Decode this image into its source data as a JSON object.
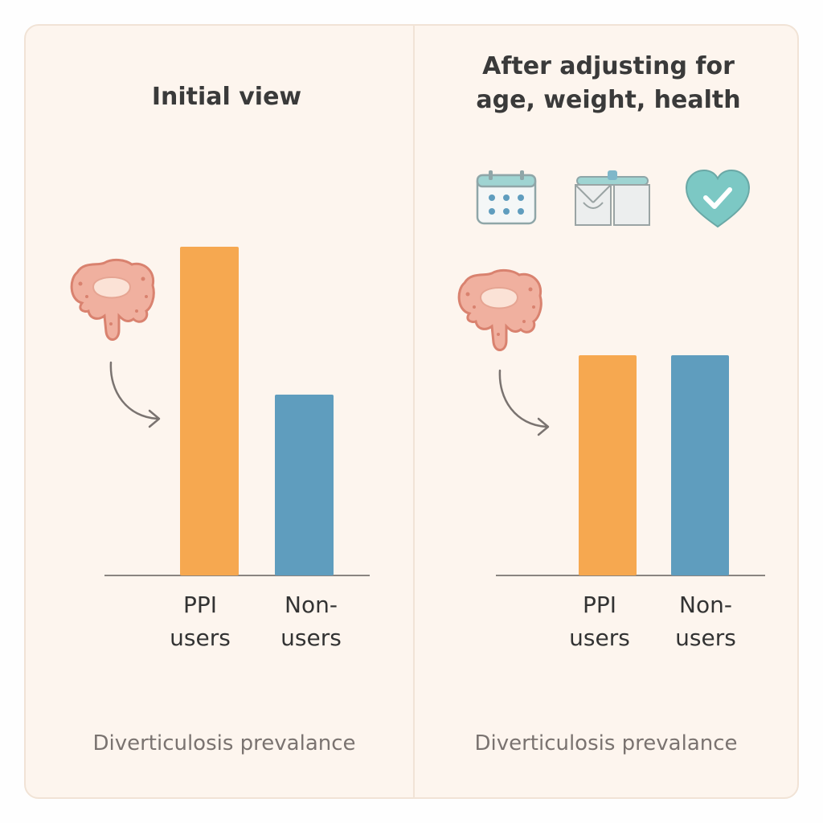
{
  "chart_data": [
    {
      "type": "bar",
      "title": "Initial view",
      "categories": [
        "PPI users",
        "Non-users"
      ],
      "category_lines": [
        [
          "PPI",
          "users"
        ],
        [
          "Non-",
          "users"
        ]
      ],
      "values": [
        100,
        55
      ],
      "ylim": [
        0,
        100
      ],
      "xlabel": "Diverticulosis prevalance",
      "ylabel": "",
      "colors": [
        "#f6a850",
        "#5f9dbe"
      ],
      "grid": false
    },
    {
      "type": "bar",
      "title_lines": [
        "After adjusting for",
        "age, weight, health"
      ],
      "categories": [
        "PPI users",
        "Non-users"
      ],
      "category_lines": [
        [
          "PPI",
          "users"
        ],
        [
          "Non-",
          "users"
        ]
      ],
      "values": [
        100,
        100
      ],
      "ylim": [
        0,
        100
      ],
      "xlabel": "Diverticulosis prevalance",
      "ylabel": "",
      "colors": [
        "#f6a850",
        "#5f9dbe"
      ],
      "grid": false
    }
  ],
  "icons": {
    "left_organ": "colon-icon",
    "right_organ": "colon-icon",
    "adjustments": [
      "calendar-icon",
      "scale-icon",
      "heart-check-icon"
    ]
  },
  "colors": {
    "background": "#fdf5ee",
    "ppi_bar": "#f6a850",
    "non_user_bar": "#5f9dbe",
    "organ": "#e59a8a",
    "heart": "#7cc8c4"
  }
}
